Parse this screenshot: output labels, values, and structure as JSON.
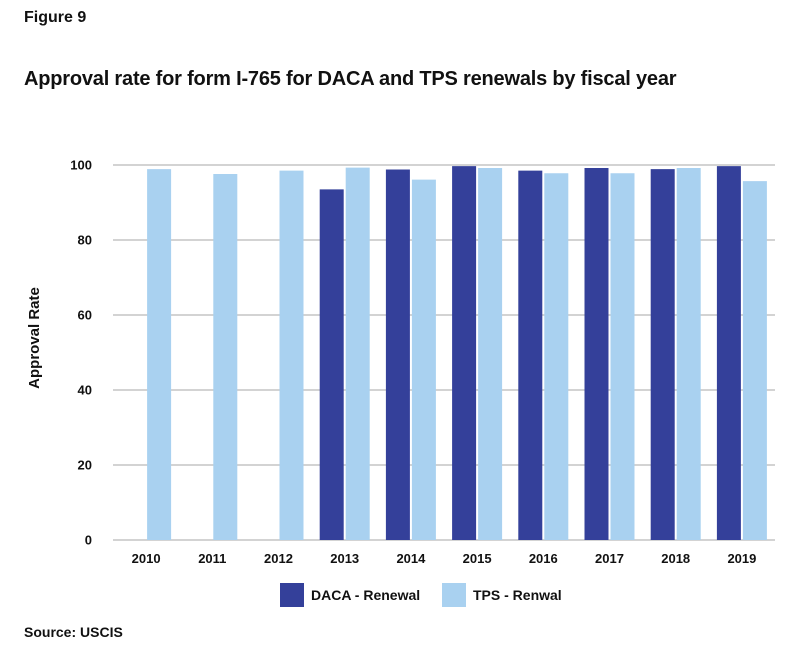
{
  "figure_label": "Figure 9",
  "source": "Source: USCIS",
  "chart_data": {
    "type": "bar",
    "title": "Approval rate for form I-765 for DACA and TPS renewals by fiscal year",
    "xlabel": "",
    "ylabel": "Approval Rate",
    "ylim": [
      0,
      100
    ],
    "yticks": [
      0,
      20,
      40,
      60,
      80,
      100
    ],
    "grid": true,
    "legend_position": "bottom",
    "categories": [
      "2010",
      "2011",
      "2012",
      "2013",
      "2014",
      "2015",
      "2016",
      "2017",
      "2018",
      "2019"
    ],
    "series": [
      {
        "name": "DACA - Renewal",
        "color": "#34409a",
        "values": [
          null,
          null,
          null,
          93.5,
          98.8,
          99.7,
          98.5,
          99.2,
          98.9,
          99.7
        ]
      },
      {
        "name": "TPS - Renwal",
        "color": "#a9d1f0",
        "values": [
          98.9,
          97.6,
          98.5,
          99.3,
          96.1,
          99.2,
          97.8,
          97.8,
          99.2,
          95.7
        ]
      }
    ]
  }
}
